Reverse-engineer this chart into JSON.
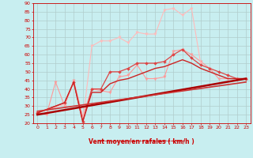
{
  "xlim": [
    -0.5,
    23.5
  ],
  "ylim": [
    20,
    90
  ],
  "yticks": [
    20,
    25,
    30,
    35,
    40,
    45,
    50,
    55,
    60,
    65,
    70,
    75,
    80,
    85,
    90
  ],
  "xticks": [
    0,
    1,
    2,
    3,
    4,
    5,
    6,
    7,
    8,
    9,
    10,
    11,
    12,
    13,
    14,
    15,
    16,
    17,
    18,
    19,
    20,
    21,
    22,
    23
  ],
  "bg_color": "#c8eef0",
  "grid_color": "#b0cccc",
  "xlabel": "Vent moyen/en rafales ( km/h )",
  "xlabel_color": "#cc0000",
  "tick_color": "#cc0000",
  "spine_color": "#cc0000",
  "series": [
    {
      "x": [
        0,
        1,
        2,
        3,
        4,
        5,
        6,
        7,
        8,
        9,
        10,
        11,
        12,
        13,
        14,
        15,
        16,
        17,
        18,
        19,
        20,
        21,
        22,
        23
      ],
      "y": [
        26,
        25,
        44,
        30,
        45,
        24,
        40,
        39,
        38,
        47,
        48,
        54,
        46,
        46,
        47,
        62,
        63,
        60,
        56,
        52,
        46,
        46,
        46,
        46
      ],
      "color": "#ff9999",
      "lw": 0.8,
      "marker": "v",
      "ms": 2.5
    },
    {
      "x": [
        0,
        3,
        4,
        5,
        6,
        7,
        8,
        9,
        10,
        11,
        12,
        13,
        14,
        15,
        16,
        17,
        18
      ],
      "y": [
        26,
        31,
        44,
        21,
        65,
        68,
        68,
        70,
        67,
        73,
        72,
        72,
        86,
        87,
        83,
        87,
        55
      ],
      "color": "#ffbbbb",
      "lw": 0.8,
      "marker": "v",
      "ms": 2.5
    },
    {
      "x": [
        0,
        3,
        4,
        5,
        6,
        7,
        8,
        9,
        10,
        11,
        12,
        13,
        14,
        15,
        16,
        17,
        18,
        19,
        20,
        21,
        22,
        23
      ],
      "y": [
        26,
        32,
        44,
        21,
        40,
        40,
        50,
        50,
        52,
        55,
        55,
        55,
        56,
        60,
        63,
        58,
        54,
        52,
        50,
        48,
        46,
        46
      ],
      "color": "#dd4444",
      "lw": 0.9,
      "marker": "D",
      "ms": 2.0
    },
    {
      "x": [
        0,
        3,
        4,
        5,
        6,
        7,
        8,
        9,
        10,
        11,
        12,
        13,
        14,
        15,
        16,
        17,
        18,
        19,
        20,
        21,
        22,
        23
      ],
      "y": [
        26,
        32,
        44,
        21,
        38,
        38,
        43,
        45,
        46,
        48,
        50,
        52,
        53,
        55,
        57,
        55,
        52,
        50,
        48,
        46,
        46,
        46
      ],
      "color": "#cc2222",
      "lw": 1.0,
      "marker": null,
      "ms": 0
    },
    {
      "x": [
        0,
        23
      ],
      "y": [
        25,
        46
      ],
      "color": "#aa0000",
      "lw": 1.8,
      "marker": null,
      "ms": 0
    },
    {
      "x": [
        0,
        23
      ],
      "y": [
        27,
        44
      ],
      "color": "#cc3333",
      "lw": 1.2,
      "marker": null,
      "ms": 0
    }
  ],
  "arrow_row": "→→→→→→→→→→→→→→→→→→→→→→→→"
}
